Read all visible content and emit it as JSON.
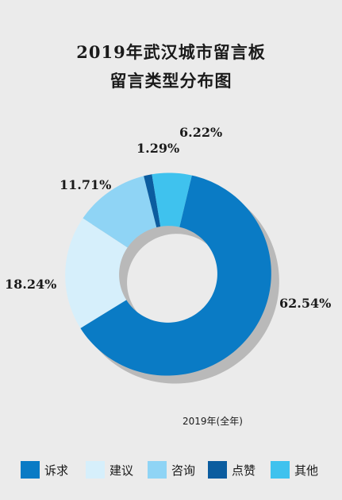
{
  "header": {
    "title_line1": "2019年武汉城市留言板",
    "title_line2": "留言类型分布图"
  },
  "chart_data": {
    "type": "pie",
    "donut": true,
    "title": "2019年武汉城市留言板 留言类型分布图",
    "subtitle": "2019年(全年)",
    "categories": [
      "诉求",
      "建议",
      "咨询",
      "点赞",
      "其他"
    ],
    "values": [
      62.54,
      18.24,
      11.71,
      1.29,
      6.22
    ],
    "value_labels": [
      "62.54%",
      "18.24%",
      "11.71%",
      "1.29%",
      "6.22%"
    ],
    "unit": "%",
    "colors": [
      "#0a7bc5",
      "#d6effb",
      "#8fd4f5",
      "#0b5c9f",
      "#3fc2ee"
    ],
    "legend_position": "bottom"
  }
}
